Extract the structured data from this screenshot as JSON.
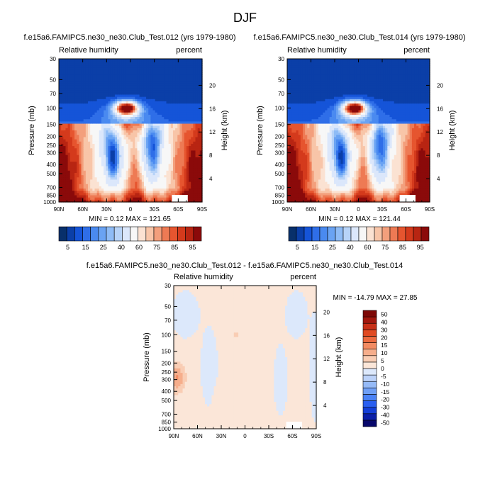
{
  "page_title": "DJF",
  "colors": {
    "main_scale": [
      "#08306b",
      "#0b3fa8",
      "#1554d8",
      "#2f6ee8",
      "#4a8af0",
      "#6aa3f3",
      "#8fbcf6",
      "#b7d3f8",
      "#dbe7fb",
      "#f7f7f7",
      "#fbe2d2",
      "#f8c5a8",
      "#f39f7c",
      "#ee7a54",
      "#e6552f",
      "#d43a1c",
      "#b82512",
      "#8b0a0a"
    ],
    "diff_scale": [
      "#08086b",
      "#0b1fa8",
      "#143fd8",
      "#2a5ff0",
      "#4a82f5",
      "#6f9ff6",
      "#95baf7",
      "#bcd2f9",
      "#dce8fb",
      "#fbe6d8",
      "#f9cdb4",
      "#f6ae8c",
      "#f28b62",
      "#ec6a3f",
      "#e04a22",
      "#c83017",
      "#a2170d",
      "#7d0806"
    ]
  },
  "chart_data": [
    {
      "type": "heatmap",
      "title": "f.e15a6.FAMIPC5.ne30_ne30.Club_Test.012 (yrs 1979-1980)",
      "left_label": "Relative humidity",
      "right_label": "percent",
      "ylabel": "Pressure (mb)",
      "ylabel_right": "Height (km)",
      "xlim": [
        90,
        -90
      ],
      "ylim": [
        1000,
        30
      ],
      "x_ticks": [
        {
          "v": 90,
          "label": "90N"
        },
        {
          "v": 60,
          "label": "60N"
        },
        {
          "v": 30,
          "label": "30N"
        },
        {
          "v": 0,
          "label": "0"
        },
        {
          "v": -30,
          "label": "30S"
        },
        {
          "v": -60,
          "label": "60S"
        },
        {
          "v": -90,
          "label": "90S"
        }
      ],
      "p_ticks": [
        {
          "v": 30,
          "label": "30"
        },
        {
          "v": 50,
          "label": "50"
        },
        {
          "v": 70,
          "label": "70"
        },
        {
          "v": 100,
          "label": "100"
        },
        {
          "v": 150,
          "label": "150"
        },
        {
          "v": 200,
          "label": "200"
        },
        {
          "v": 250,
          "label": "250"
        },
        {
          "v": 300,
          "label": "300"
        },
        {
          "v": 400,
          "label": "400"
        },
        {
          "v": 500,
          "label": "500"
        },
        {
          "v": 700,
          "label": "700"
        },
        {
          "v": 850,
          "label": "850"
        },
        {
          "v": 1000,
          "label": "1000"
        }
      ],
      "h_ticks": [
        {
          "v": 20,
          "label": "20"
        },
        {
          "v": 16,
          "label": "16"
        },
        {
          "v": 12,
          "label": "12"
        },
        {
          "v": 8,
          "label": "8"
        },
        {
          "v": 4,
          "label": "4"
        }
      ],
      "min_max": "MIN =  0.12  MAX = 121.65",
      "colorbar_levels": [
        "5",
        "15",
        "25",
        "40",
        "60",
        "75",
        "85",
        "95"
      ],
      "variant": "field"
    },
    {
      "type": "heatmap",
      "title": "f.e15a6.FAMIPC5.ne30_ne30.Club_Test.014 (yrs 1979-1980)",
      "left_label": "Relative humidity",
      "right_label": "percent",
      "ylabel": "Pressure (mb)",
      "ylabel_right": "Height (km)",
      "xlim": [
        90,
        -90
      ],
      "ylim": [
        1000,
        30
      ],
      "x_ticks": [
        {
          "v": 90,
          "label": "90N"
        },
        {
          "v": 60,
          "label": "60N"
        },
        {
          "v": 30,
          "label": "30N"
        },
        {
          "v": 0,
          "label": "0"
        },
        {
          "v": -30,
          "label": "30S"
        },
        {
          "v": -60,
          "label": "60S"
        },
        {
          "v": -90,
          "label": "90S"
        }
      ],
      "p_ticks": [
        {
          "v": 30,
          "label": "30"
        },
        {
          "v": 50,
          "label": "50"
        },
        {
          "v": 70,
          "label": "70"
        },
        {
          "v": 100,
          "label": "100"
        },
        {
          "v": 150,
          "label": "150"
        },
        {
          "v": 200,
          "label": "200"
        },
        {
          "v": 250,
          "label": "250"
        },
        {
          "v": 300,
          "label": "300"
        },
        {
          "v": 400,
          "label": "400"
        },
        {
          "v": 500,
          "label": "500"
        },
        {
          "v": 700,
          "label": "700"
        },
        {
          "v": 850,
          "label": "850"
        },
        {
          "v": 1000,
          "label": "1000"
        }
      ],
      "h_ticks": [
        {
          "v": 20,
          "label": "20"
        },
        {
          "v": 16,
          "label": "16"
        },
        {
          "v": 12,
          "label": "12"
        },
        {
          "v": 8,
          "label": "8"
        },
        {
          "v": 4,
          "label": "4"
        }
      ],
      "min_max": "MIN =  0.12  MAX = 121.44",
      "colorbar_levels": [
        "5",
        "15",
        "25",
        "40",
        "60",
        "75",
        "85",
        "95"
      ],
      "variant": "field"
    },
    {
      "type": "heatmap",
      "title": "f.e15a6.FAMIPC5.ne30_ne30.Club_Test.012 - f.e15a6.FAMIPC5.ne30_ne30.Club_Test.014",
      "left_label": "Relative humidity",
      "right_label": "percent",
      "ylabel": "Pressure (mb)",
      "ylabel_right": "Height (km)",
      "xlim": [
        90,
        -90
      ],
      "ylim": [
        1000,
        30
      ],
      "x_ticks": [
        {
          "v": 90,
          "label": "90N"
        },
        {
          "v": 60,
          "label": "60N"
        },
        {
          "v": 30,
          "label": "30N"
        },
        {
          "v": 0,
          "label": "0"
        },
        {
          "v": -30,
          "label": "30S"
        },
        {
          "v": -60,
          "label": "60S"
        },
        {
          "v": -90,
          "label": "90S"
        }
      ],
      "p_ticks": [
        {
          "v": 30,
          "label": "30"
        },
        {
          "v": 50,
          "label": "50"
        },
        {
          "v": 70,
          "label": "70"
        },
        {
          "v": 100,
          "label": "100"
        },
        {
          "v": 150,
          "label": "150"
        },
        {
          "v": 200,
          "label": "200"
        },
        {
          "v": 250,
          "label": "250"
        },
        {
          "v": 300,
          "label": "300"
        },
        {
          "v": 400,
          "label": "400"
        },
        {
          "v": 500,
          "label": "500"
        },
        {
          "v": 700,
          "label": "700"
        },
        {
          "v": 850,
          "label": "850"
        },
        {
          "v": 1000,
          "label": "1000"
        }
      ],
      "h_ticks": [
        {
          "v": 20,
          "label": "20"
        },
        {
          "v": 16,
          "label": "16"
        },
        {
          "v": 12,
          "label": "12"
        },
        {
          "v": 8,
          "label": "8"
        },
        {
          "v": 4,
          "label": "4"
        }
      ],
      "min_max": "MIN = -14.79  MAX =  27.85",
      "colorbar_levels": [
        "50",
        "40",
        "30",
        "20",
        "15",
        "10",
        "5",
        "0",
        "-5",
        "-10",
        "-15",
        "-20",
        "-30",
        "-40",
        "-50"
      ],
      "variant": "diff"
    }
  ]
}
